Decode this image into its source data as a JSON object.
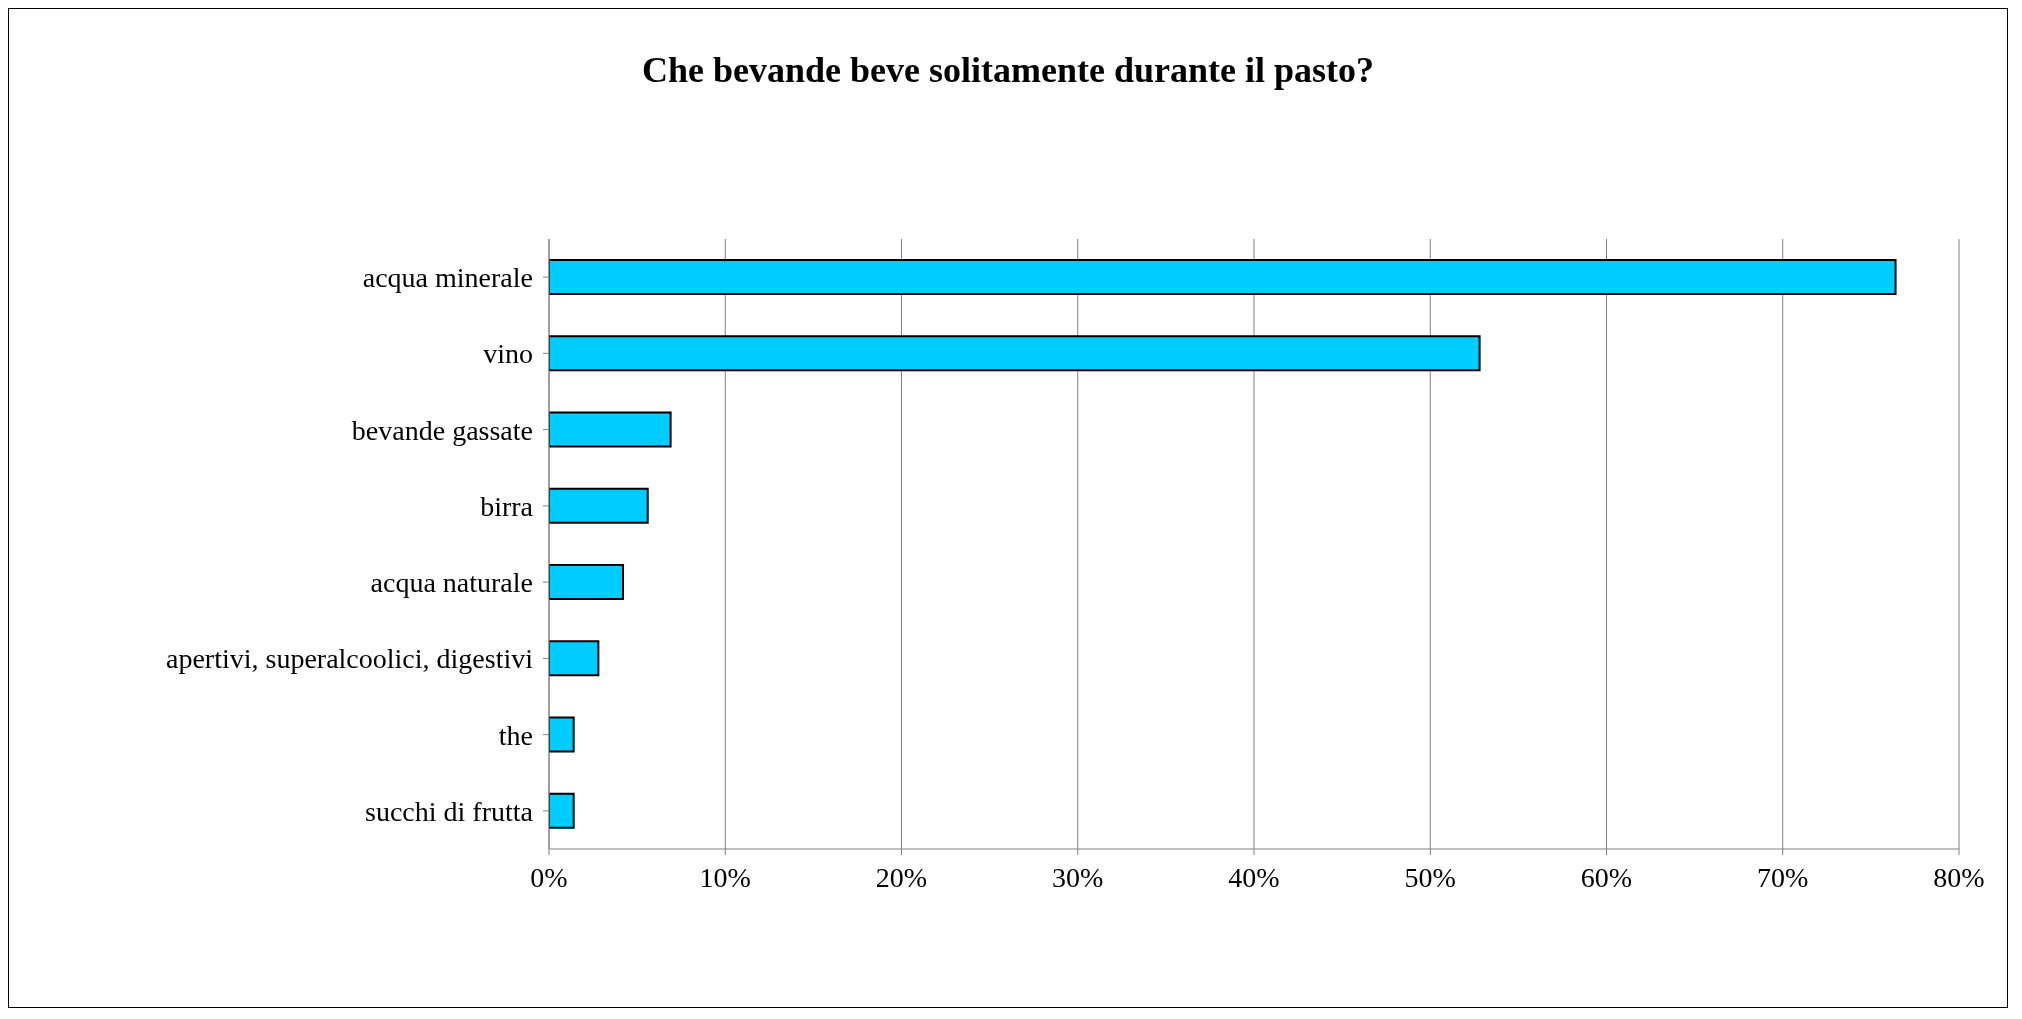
{
  "chart_data": {
    "type": "bar",
    "orientation": "horizontal",
    "title": "Che bevande beve solitamente durante il pasto?",
    "categories": [
      "acqua minerale",
      "vino",
      "bevande gassate",
      "birra",
      "acqua naturale",
      "apertivi, superalcoolici, digestivi",
      "the",
      "succhi di frutta"
    ],
    "values": [
      76.4,
      52.8,
      6.9,
      5.6,
      4.2,
      2.8,
      1.4,
      1.4
    ],
    "color": "#00ccff",
    "xlim": [
      0,
      80
    ],
    "xticks": [
      {
        "value": 0,
        "label": "0%"
      },
      {
        "value": 10,
        "label": "10%"
      },
      {
        "value": 20,
        "label": "20%"
      },
      {
        "value": 30,
        "label": "30%"
      },
      {
        "value": 40,
        "label": "40%"
      },
      {
        "value": 50,
        "label": "50%"
      },
      {
        "value": 60,
        "label": "60%"
      },
      {
        "value": 70,
        "label": "70%"
      },
      {
        "value": 80,
        "label": "80%"
      }
    ],
    "grid": "x",
    "legend": false
  }
}
